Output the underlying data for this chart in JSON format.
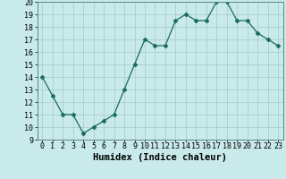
{
  "x": [
    0,
    1,
    2,
    3,
    4,
    5,
    6,
    7,
    8,
    9,
    10,
    11,
    12,
    13,
    14,
    15,
    16,
    17,
    18,
    19,
    20,
    21,
    22,
    23
  ],
  "y": [
    14,
    12.5,
    11,
    11,
    9.5,
    10,
    10.5,
    11,
    13,
    15,
    17,
    16.5,
    16.5,
    18.5,
    19,
    18.5,
    18.5,
    20,
    20,
    18.5,
    18.5,
    17.5,
    17,
    16.5
  ],
  "line_color": "#1a6b5a",
  "marker": "D",
  "marker_size": 2.5,
  "bg_color": "#c8eaea",
  "grid_color": "#a8c8c8",
  "xlabel": "Humidex (Indice chaleur)",
  "xlim": [
    -0.5,
    23.5
  ],
  "ylim": [
    9,
    20
  ],
  "yticks": [
    9,
    10,
    11,
    12,
    13,
    14,
    15,
    16,
    17,
    18,
    19,
    20
  ],
  "xticks": [
    0,
    1,
    2,
    3,
    4,
    5,
    6,
    7,
    8,
    9,
    10,
    11,
    12,
    13,
    14,
    15,
    16,
    17,
    18,
    19,
    20,
    21,
    22,
    23
  ],
  "xlabel_fontsize": 7.5,
  "tick_fontsize": 6
}
